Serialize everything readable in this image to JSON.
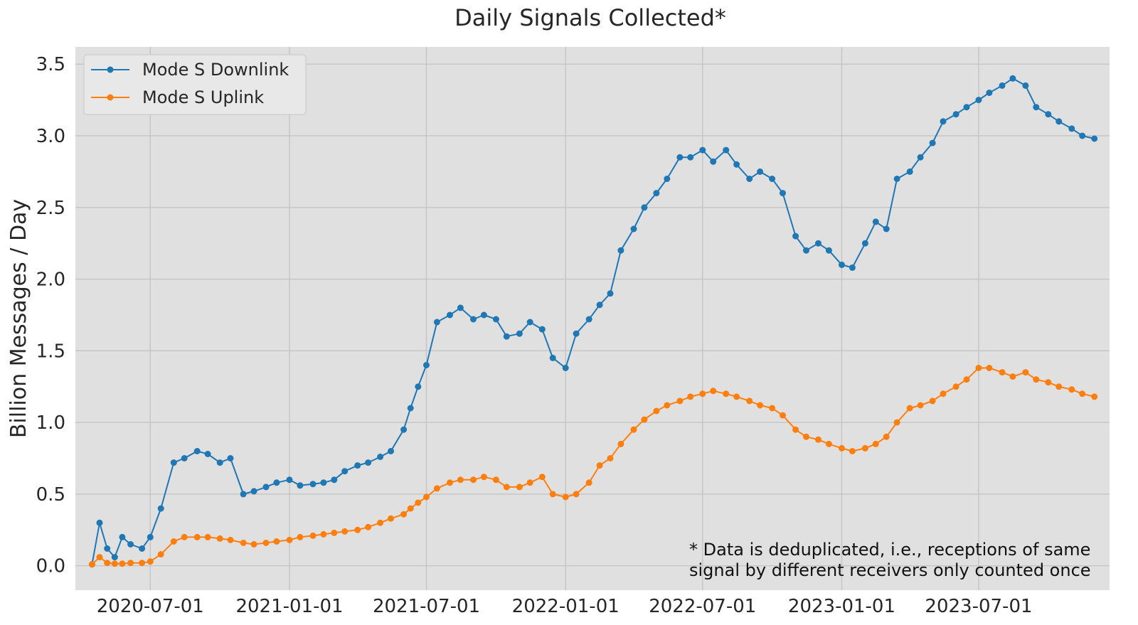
{
  "chart_data": {
    "type": "line",
    "title": "Daily Signals Collected*",
    "xlabel": "",
    "ylabel": "Billion Messages / Day",
    "xlim": [
      "2020-03-24",
      "2023-12-21"
    ],
    "ylim": [
      -0.17,
      3.62
    ],
    "grid": true,
    "legend_position": "top-left",
    "x_ticks": [
      "2020-07-01",
      "2021-01-01",
      "2021-07-01",
      "2022-01-01",
      "2022-07-01",
      "2023-01-01",
      "2023-07-01"
    ],
    "y_ticks": [
      0.0,
      0.5,
      1.0,
      1.5,
      2.0,
      2.5,
      3.0,
      3.5
    ],
    "y_tick_labels": [
      "0.0",
      "0.5",
      "1.0",
      "1.5",
      "2.0",
      "2.5",
      "3.0",
      "3.5"
    ],
    "annotation": [
      "* Data is deduplicated, i.e., receptions of same",
      "signal by different receivers only counted once"
    ],
    "series": [
      {
        "name": "Mode S Downlink",
        "color": "#1f77b4",
        "x": [
          "2020-04-15",
          "2020-04-25",
          "2020-05-05",
          "2020-05-15",
          "2020-05-25",
          "2020-06-05",
          "2020-06-20",
          "2020-07-01",
          "2020-07-15",
          "2020-08-01",
          "2020-08-15",
          "2020-09-01",
          "2020-09-15",
          "2020-10-01",
          "2020-10-15",
          "2020-11-01",
          "2020-11-15",
          "2020-12-01",
          "2020-12-15",
          "2021-01-01",
          "2021-01-15",
          "2021-02-01",
          "2021-02-15",
          "2021-03-01",
          "2021-03-15",
          "2021-04-01",
          "2021-04-15",
          "2021-05-01",
          "2021-05-15",
          "2021-06-01",
          "2021-06-10",
          "2021-06-20",
          "2021-07-01",
          "2021-07-15",
          "2021-08-01",
          "2021-08-15",
          "2021-09-01",
          "2021-09-15",
          "2021-10-01",
          "2021-10-15",
          "2021-11-01",
          "2021-11-15",
          "2021-12-01",
          "2021-12-15",
          "2022-01-01",
          "2022-01-15",
          "2022-02-01",
          "2022-02-15",
          "2022-03-01",
          "2022-03-15",
          "2022-04-01",
          "2022-04-15",
          "2022-05-01",
          "2022-05-15",
          "2022-06-01",
          "2022-06-15",
          "2022-07-01",
          "2022-07-15",
          "2022-08-01",
          "2022-08-15",
          "2022-09-01",
          "2022-09-15",
          "2022-10-01",
          "2022-10-15",
          "2022-11-01",
          "2022-11-15",
          "2022-12-01",
          "2022-12-15",
          "2023-01-01",
          "2023-01-15",
          "2023-02-01",
          "2023-02-15",
          "2023-03-01",
          "2023-03-15",
          "2023-04-01",
          "2023-04-15",
          "2023-05-01",
          "2023-05-15",
          "2023-06-01",
          "2023-06-15",
          "2023-07-01",
          "2023-07-15",
          "2023-08-01",
          "2023-08-15",
          "2023-09-01",
          "2023-09-15",
          "2023-10-01",
          "2023-10-15",
          "2023-11-01",
          "2023-11-15",
          "2023-12-01"
        ],
        "values": [
          0.01,
          0.3,
          0.12,
          0.06,
          0.2,
          0.15,
          0.12,
          0.2,
          0.4,
          0.72,
          0.75,
          0.8,
          0.78,
          0.72,
          0.75,
          0.5,
          0.52,
          0.55,
          0.58,
          0.6,
          0.56,
          0.57,
          0.58,
          0.6,
          0.66,
          0.7,
          0.72,
          0.76,
          0.8,
          0.95,
          1.1,
          1.25,
          1.4,
          1.7,
          1.75,
          1.8,
          1.72,
          1.75,
          1.72,
          1.6,
          1.62,
          1.7,
          1.65,
          1.45,
          1.38,
          1.62,
          1.72,
          1.82,
          1.9,
          2.2,
          2.35,
          2.5,
          2.6,
          2.7,
          2.85,
          2.85,
          2.9,
          2.82,
          2.9,
          2.8,
          2.7,
          2.75,
          2.7,
          2.6,
          2.3,
          2.2,
          2.25,
          2.2,
          2.1,
          2.08,
          2.25,
          2.4,
          2.35,
          2.7,
          2.75,
          2.85,
          2.95,
          3.1,
          3.15,
          3.2,
          3.25,
          3.3,
          3.35,
          3.4,
          3.35,
          3.2,
          3.15,
          3.1,
          3.05,
          3.0,
          2.98
        ]
      },
      {
        "name": "Mode S Uplink",
        "color": "#ff7f0e",
        "x": [
          "2020-04-15",
          "2020-04-25",
          "2020-05-05",
          "2020-05-15",
          "2020-05-25",
          "2020-06-05",
          "2020-06-20",
          "2020-07-01",
          "2020-07-15",
          "2020-08-01",
          "2020-08-15",
          "2020-09-01",
          "2020-09-15",
          "2020-10-01",
          "2020-10-15",
          "2020-11-01",
          "2020-11-15",
          "2020-12-01",
          "2020-12-15",
          "2021-01-01",
          "2021-01-15",
          "2021-02-01",
          "2021-02-15",
          "2021-03-01",
          "2021-03-15",
          "2021-04-01",
          "2021-04-15",
          "2021-05-01",
          "2021-05-15",
          "2021-06-01",
          "2021-06-10",
          "2021-06-20",
          "2021-07-01",
          "2021-07-15",
          "2021-08-01",
          "2021-08-15",
          "2021-09-01",
          "2021-09-15",
          "2021-10-01",
          "2021-10-15",
          "2021-11-01",
          "2021-11-15",
          "2021-12-01",
          "2021-12-15",
          "2022-01-01",
          "2022-01-15",
          "2022-02-01",
          "2022-02-15",
          "2022-03-01",
          "2022-03-15",
          "2022-04-01",
          "2022-04-15",
          "2022-05-01",
          "2022-05-15",
          "2022-06-01",
          "2022-06-15",
          "2022-07-01",
          "2022-07-15",
          "2022-08-01",
          "2022-08-15",
          "2022-09-01",
          "2022-09-15",
          "2022-10-01",
          "2022-10-15",
          "2022-11-01",
          "2022-11-15",
          "2022-12-01",
          "2022-12-15",
          "2023-01-01",
          "2023-01-15",
          "2023-02-01",
          "2023-02-15",
          "2023-03-01",
          "2023-03-15",
          "2023-04-01",
          "2023-04-15",
          "2023-05-01",
          "2023-05-15",
          "2023-06-01",
          "2023-06-15",
          "2023-07-01",
          "2023-07-15",
          "2023-08-01",
          "2023-08-15",
          "2023-09-01",
          "2023-09-15",
          "2023-10-01",
          "2023-10-15",
          "2023-11-01",
          "2023-11-15",
          "2023-12-01"
        ],
        "values": [
          0.01,
          0.06,
          0.02,
          0.015,
          0.015,
          0.02,
          0.02,
          0.03,
          0.08,
          0.17,
          0.2,
          0.2,
          0.2,
          0.19,
          0.18,
          0.16,
          0.15,
          0.16,
          0.17,
          0.18,
          0.2,
          0.21,
          0.22,
          0.23,
          0.24,
          0.25,
          0.27,
          0.3,
          0.33,
          0.36,
          0.4,
          0.44,
          0.48,
          0.54,
          0.58,
          0.6,
          0.6,
          0.62,
          0.6,
          0.55,
          0.55,
          0.58,
          0.62,
          0.5,
          0.48,
          0.5,
          0.58,
          0.7,
          0.75,
          0.85,
          0.95,
          1.02,
          1.08,
          1.12,
          1.15,
          1.18,
          1.2,
          1.22,
          1.2,
          1.18,
          1.15,
          1.12,
          1.1,
          1.05,
          0.95,
          0.9,
          0.88,
          0.85,
          0.82,
          0.8,
          0.82,
          0.85,
          0.9,
          1.0,
          1.1,
          1.12,
          1.15,
          1.2,
          1.25,
          1.3,
          1.38,
          1.38,
          1.35,
          1.32,
          1.35,
          1.3,
          1.28,
          1.25,
          1.23,
          1.2,
          1.18
        ]
      }
    ]
  }
}
